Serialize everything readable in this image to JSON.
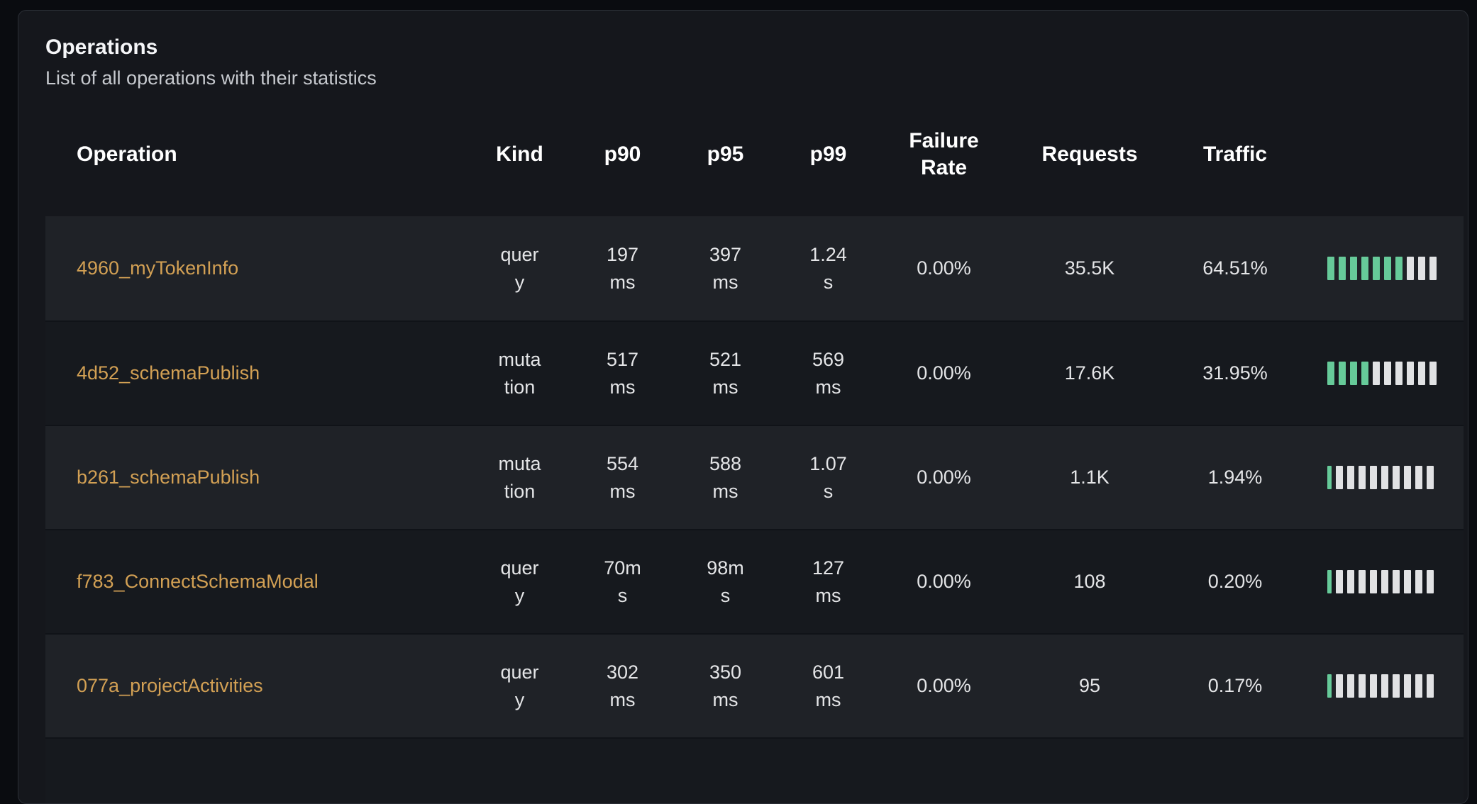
{
  "card": {
    "title": "Operations",
    "subtitle": "List of all operations with their statistics"
  },
  "table": {
    "columns": {
      "operation": "Operation",
      "kind": "Kind",
      "p90": "p90",
      "p95": "p95",
      "p99": "p99",
      "failure_rate": "Failure Rate",
      "requests": "Requests",
      "traffic": "Traffic"
    },
    "rows": [
      {
        "operation": "4960_myTokenInfo",
        "kind": "query",
        "p90": "197ms",
        "p95": "397ms",
        "p99": "1.24s",
        "failure_rate": "0.00%",
        "requests": "35.5K",
        "traffic": "64.51%",
        "traffic_bars": {
          "total": 10,
          "green": 7,
          "partial_first": false
        }
      },
      {
        "operation": "4d52_schemaPublish",
        "kind": "mutation",
        "p90": "517ms",
        "p95": "521ms",
        "p99": "569ms",
        "failure_rate": "0.00%",
        "requests": "17.6K",
        "traffic": "31.95%",
        "traffic_bars": {
          "total": 10,
          "green": 4,
          "partial_first": false
        }
      },
      {
        "operation": "b261_schemaPublish",
        "kind": "mutation",
        "p90": "554ms",
        "p95": "588ms",
        "p99": "1.07s",
        "failure_rate": "0.00%",
        "requests": "1.1K",
        "traffic": "1.94%",
        "traffic_bars": {
          "total": 10,
          "green": 1,
          "partial_first": true
        }
      },
      {
        "operation": "f783_ConnectSchemaModal",
        "kind": "query",
        "p90": "70ms",
        "p95": "98ms",
        "p99": "127ms",
        "failure_rate": "0.00%",
        "requests": "108",
        "traffic": "0.20%",
        "traffic_bars": {
          "total": 10,
          "green": 1,
          "partial_first": true
        }
      },
      {
        "operation": "077a_projectActivities",
        "kind": "query",
        "p90": "302ms",
        "p95": "350ms",
        "p99": "601ms",
        "failure_rate": "0.00%",
        "requests": "95",
        "traffic": "0.17%",
        "traffic_bars": {
          "total": 10,
          "green": 1,
          "partial_first": true
        }
      }
    ]
  },
  "colors": {
    "accent_link": "#d2a054",
    "bar_filled": "#66ca99",
    "bar_empty": "#e1e2e4"
  }
}
